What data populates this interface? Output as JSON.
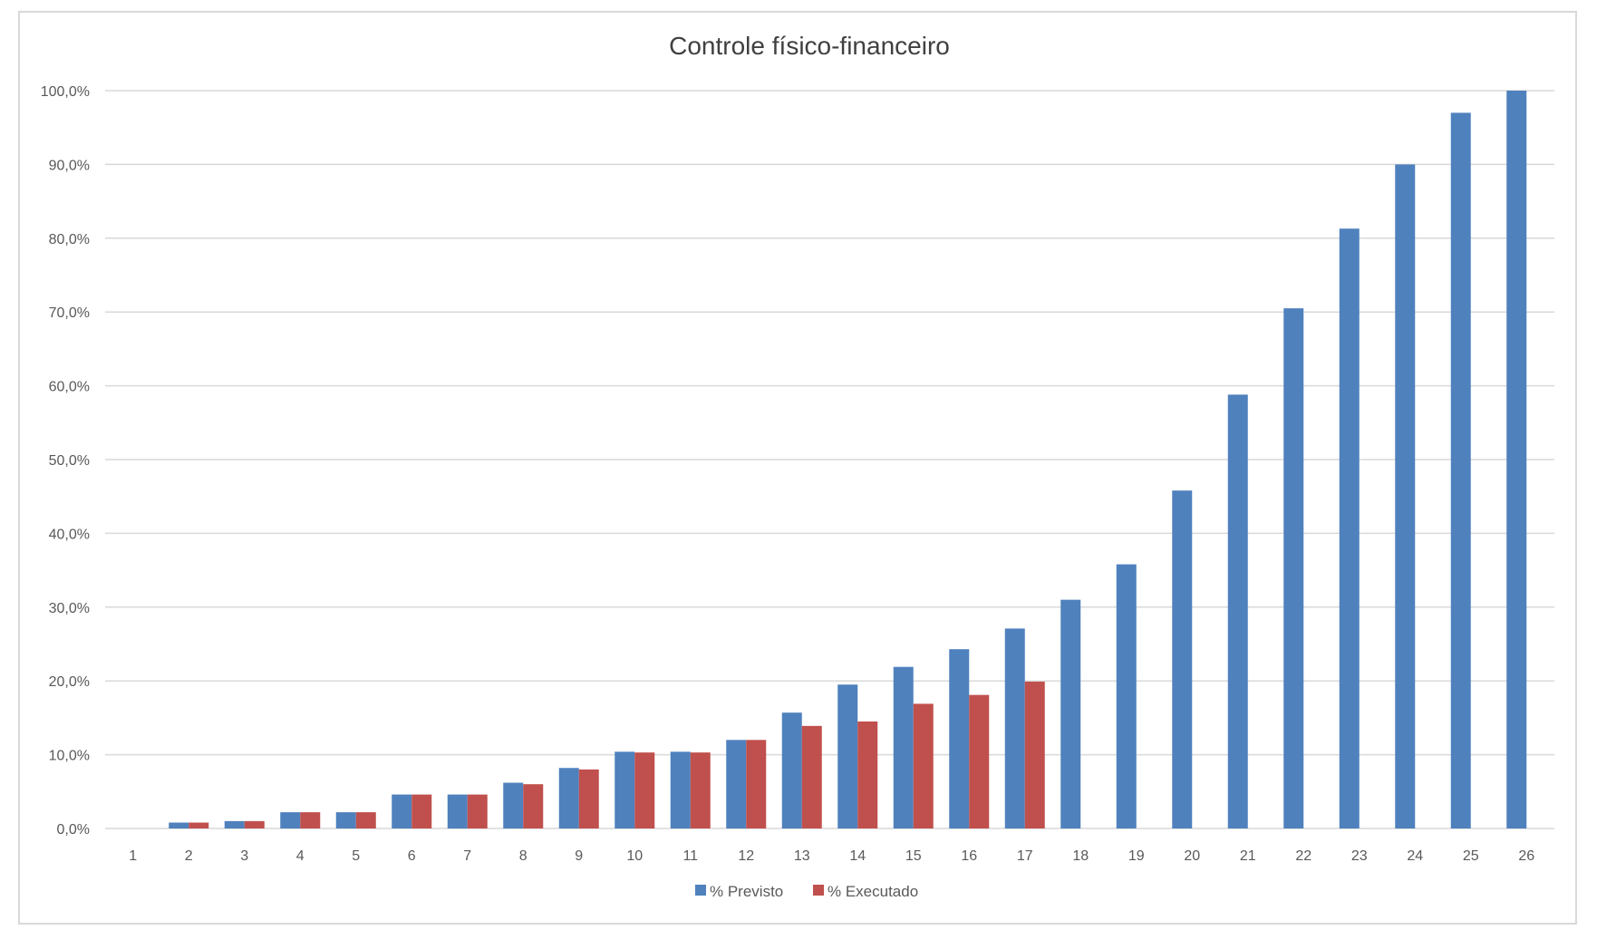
{
  "chart_data": {
    "type": "bar",
    "title": "Controle físico-financeiro",
    "xlabel": "",
    "ylabel": "",
    "categories": [
      "1",
      "2",
      "3",
      "4",
      "5",
      "6",
      "7",
      "8",
      "9",
      "10",
      "11",
      "12",
      "13",
      "14",
      "15",
      "16",
      "17",
      "18",
      "19",
      "20",
      "21",
      "22",
      "23",
      "24",
      "25",
      "26"
    ],
    "series": [
      {
        "name": "% Previsto",
        "color": "#4f81bd",
        "values": [
          0.0,
          0.8,
          1.0,
          2.2,
          2.2,
          4.6,
          4.6,
          6.2,
          8.2,
          10.4,
          10.4,
          12.0,
          15.7,
          19.5,
          21.9,
          24.3,
          27.1,
          31.0,
          35.8,
          45.8,
          58.8,
          70.5,
          81.3,
          90.0,
          97.0,
          100.0
        ]
      },
      {
        "name": "% Executado",
        "color": "#c0504d",
        "values": [
          0.0,
          0.8,
          1.0,
          2.2,
          2.2,
          4.6,
          4.6,
          6.0,
          8.0,
          10.3,
          10.3,
          12.0,
          13.9,
          14.5,
          16.9,
          18.1,
          19.9,
          null,
          null,
          null,
          null,
          null,
          null,
          null,
          null,
          null
        ]
      }
    ],
    "ylim": [
      0,
      100
    ],
    "yticks": [
      0,
      10,
      20,
      30,
      40,
      50,
      60,
      70,
      80,
      90,
      100
    ],
    "ytick_labels": [
      "0,0%",
      "10,0%",
      "20,0%",
      "30,0%",
      "40,0%",
      "50,0%",
      "60,0%",
      "70,0%",
      "80,0%",
      "90,0%",
      "100,0%"
    ],
    "grid": true,
    "legend_position": "bottom"
  }
}
